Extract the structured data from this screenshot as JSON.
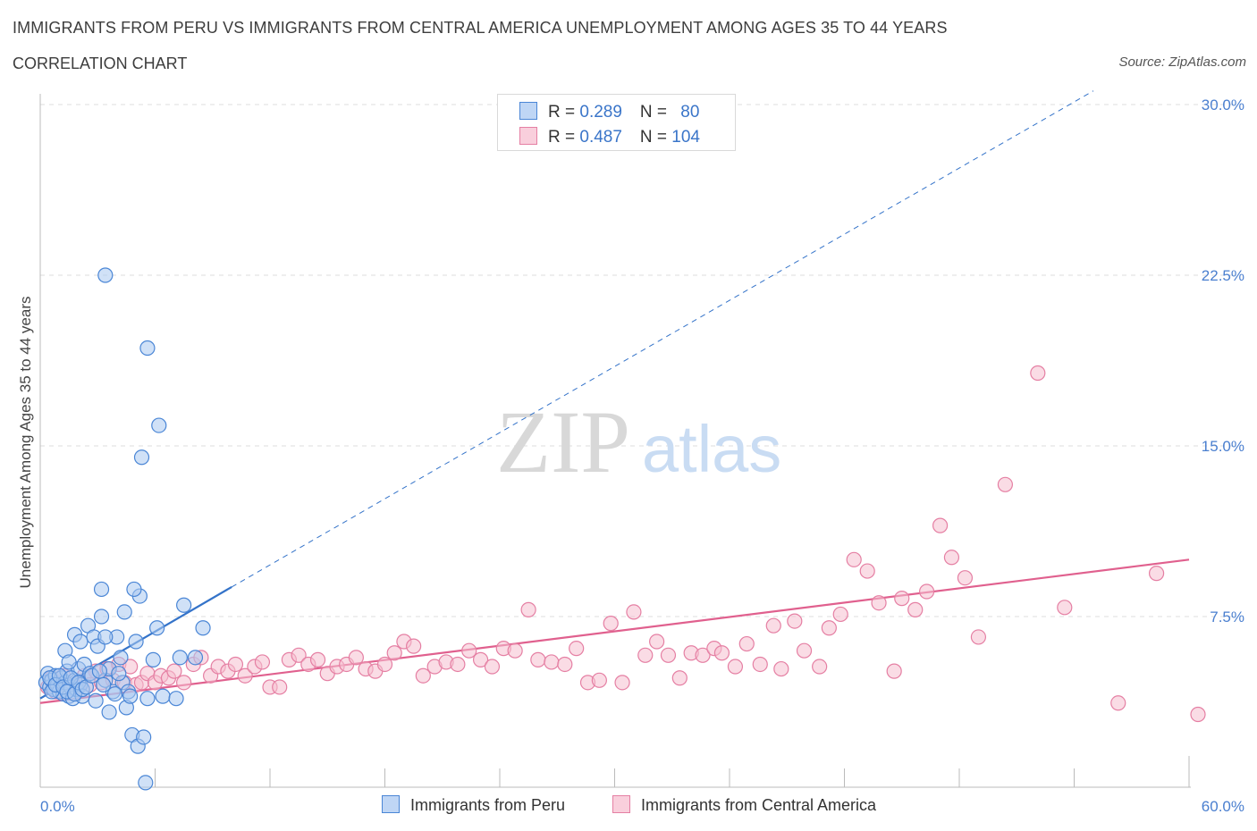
{
  "header": {
    "title": "IMMIGRANTS FROM PERU VS IMMIGRANTS FROM CENTRAL AMERICA UNEMPLOYMENT AMONG AGES 35 TO 44 YEARS",
    "subtitle": "CORRELATION CHART",
    "source": "Source: ZipAtlas.com"
  },
  "watermark": {
    "zip": "ZIP",
    "atlas": "atlas"
  },
  "legend": {
    "peru": {
      "r_label": "R = ",
      "r_value": "0.289",
      "n_label": "N = ",
      "n_value": "80"
    },
    "central": {
      "r_label": "R = ",
      "r_value": "0.487",
      "n_label": "N = ",
      "n_value": "104"
    }
  },
  "colors": {
    "peru_fill": "#a9c9f1",
    "peru_stroke": "#4a86d6",
    "peru_line": "#3473c9",
    "central_fill": "#f6bfd0",
    "central_stroke": "#e57fa3",
    "central_line": "#e0608e",
    "tick_text": "#4a7fcf",
    "grid": "#dddddd"
  },
  "chart_data": {
    "type": "scatter",
    "title": "IMMIGRANTS FROM PERU VS IMMIGRANTS FROM CENTRAL AMERICA UNEMPLOYMENT AMONG AGES 35 TO 44 YEARS",
    "subtitle": "CORRELATION CHART",
    "xlabel": "",
    "ylabel": "Unemployment Among Ages 35 to 44 years",
    "xlim": [
      0,
      60
    ],
    "ylim": [
      0,
      30
    ],
    "x_ticks_labels": [
      "0.0%",
      "60.0%"
    ],
    "y_ticks": [
      7.5,
      15.0,
      22.5,
      30.0
    ],
    "y_ticks_labels": [
      "7.5%",
      "15.0%",
      "22.5%",
      "30.0%"
    ],
    "grid": "horizontal dashed",
    "legend_position": "bottom",
    "series": [
      {
        "name": "Immigrants from Peru",
        "R": 0.289,
        "N": 80,
        "trend": {
          "x": [
            0,
            10
          ],
          "y": [
            3.9,
            8.8
          ],
          "extended_to": [
            55,
            30.6
          ]
        },
        "points": [
          [
            0.3,
            4.6
          ],
          [
            0.4,
            5.0
          ],
          [
            0.5,
            4.4
          ],
          [
            0.6,
            4.7
          ],
          [
            0.7,
            4.3
          ],
          [
            0.8,
            4.9
          ],
          [
            0.9,
            4.5
          ],
          [
            1.0,
            4.2
          ],
          [
            1.1,
            4.8
          ],
          [
            1.2,
            4.1
          ],
          [
            1.3,
            4.6
          ],
          [
            1.4,
            5.1
          ],
          [
            1.5,
            4.0
          ],
          [
            1.6,
            4.4
          ],
          [
            1.7,
            3.9
          ],
          [
            1.8,
            4.7
          ],
          [
            1.9,
            4.3
          ],
          [
            2.0,
            5.2
          ],
          [
            2.1,
            4.5
          ],
          [
            2.2,
            4.0
          ],
          [
            0.5,
            4.8
          ],
          [
            0.6,
            4.2
          ],
          [
            0.8,
            4.5
          ],
          [
            1.0,
            4.9
          ],
          [
            1.2,
            4.4
          ],
          [
            1.4,
            4.2
          ],
          [
            1.6,
            4.8
          ],
          [
            1.8,
            4.1
          ],
          [
            2.0,
            4.6
          ],
          [
            2.2,
            4.3
          ],
          [
            1.3,
            6.0
          ],
          [
            1.5,
            5.5
          ],
          [
            1.8,
            6.7
          ],
          [
            2.1,
            6.4
          ],
          [
            2.3,
            5.4
          ],
          [
            2.5,
            7.1
          ],
          [
            2.6,
            5.0
          ],
          [
            2.8,
            6.6
          ],
          [
            3.0,
            6.2
          ],
          [
            3.2,
            7.5
          ],
          [
            3.4,
            4.7
          ],
          [
            3.6,
            5.2
          ],
          [
            3.8,
            4.2
          ],
          [
            4.0,
            6.6
          ],
          [
            4.2,
            5.7
          ],
          [
            4.3,
            4.6
          ],
          [
            4.5,
            3.5
          ],
          [
            4.6,
            4.2
          ],
          [
            2.4,
            4.4
          ],
          [
            2.7,
            4.9
          ],
          [
            2.9,
            3.8
          ],
          [
            3.1,
            5.1
          ],
          [
            3.3,
            4.5
          ],
          [
            3.6,
            3.3
          ],
          [
            3.9,
            4.1
          ],
          [
            4.1,
            5.0
          ],
          [
            4.4,
            7.7
          ],
          [
            4.7,
            4.0
          ],
          [
            5.0,
            6.4
          ],
          [
            5.2,
            8.4
          ],
          [
            3.2,
            8.7
          ],
          [
            3.4,
            6.6
          ],
          [
            4.9,
            8.7
          ],
          [
            5.6,
            3.9
          ],
          [
            5.9,
            5.6
          ],
          [
            6.1,
            7.0
          ],
          [
            4.8,
            2.3
          ],
          [
            5.1,
            1.8
          ],
          [
            5.4,
            2.2
          ],
          [
            5.5,
            0.2
          ],
          [
            5.3,
            14.5
          ],
          [
            5.6,
            19.3
          ],
          [
            6.2,
            15.9
          ],
          [
            3.4,
            22.5
          ],
          [
            6.4,
            4.0
          ],
          [
            7.1,
            3.9
          ],
          [
            7.3,
            5.7
          ],
          [
            7.5,
            8.0
          ],
          [
            8.1,
            5.7
          ],
          [
            8.5,
            7.0
          ]
        ]
      },
      {
        "name": "Immigrants from Central America",
        "R": 0.487,
        "N": 104,
        "trend": {
          "x": [
            0,
            60
          ],
          "y": [
            3.7,
            10.0
          ]
        },
        "points": [
          [
            0.4,
            4.4
          ],
          [
            0.6,
            4.8
          ],
          [
            0.8,
            4.2
          ],
          [
            1.0,
            4.6
          ],
          [
            1.2,
            4.9
          ],
          [
            1.5,
            4.3
          ],
          [
            1.8,
            4.7
          ],
          [
            2.0,
            4.4
          ],
          [
            2.3,
            4.9
          ],
          [
            2.6,
            4.5
          ],
          [
            2.9,
            5.1
          ],
          [
            3.2,
            4.6
          ],
          [
            3.5,
            5.2
          ],
          [
            3.8,
            4.7
          ],
          [
            4.1,
            5.4
          ],
          [
            4.4,
            4.6
          ],
          [
            4.7,
            5.3
          ],
          [
            5.0,
            4.5
          ],
          [
            5.3,
            4.6
          ],
          [
            5.6,
            5.0
          ],
          [
            6.0,
            4.6
          ],
          [
            6.3,
            4.9
          ],
          [
            6.7,
            4.8
          ],
          [
            7.0,
            5.1
          ],
          [
            7.5,
            4.6
          ],
          [
            8.0,
            5.4
          ],
          [
            8.4,
            5.7
          ],
          [
            8.9,
            4.9
          ],
          [
            9.3,
            5.3
          ],
          [
            9.8,
            5.1
          ],
          [
            10.2,
            5.4
          ],
          [
            10.7,
            4.9
          ],
          [
            11.2,
            5.3
          ],
          [
            11.6,
            5.5
          ],
          [
            12.0,
            4.4
          ],
          [
            12.5,
            4.4
          ],
          [
            13.0,
            5.6
          ],
          [
            13.5,
            5.8
          ],
          [
            14.0,
            5.4
          ],
          [
            14.5,
            5.6
          ],
          [
            15.0,
            5.0
          ],
          [
            15.5,
            5.3
          ],
          [
            16.0,
            5.4
          ],
          [
            16.5,
            5.7
          ],
          [
            17.0,
            5.2
          ],
          [
            17.5,
            5.1
          ],
          [
            18.0,
            5.4
          ],
          [
            18.5,
            5.9
          ],
          [
            19.0,
            6.4
          ],
          [
            19.5,
            6.2
          ],
          [
            20.0,
            4.9
          ],
          [
            20.6,
            5.3
          ],
          [
            21.2,
            5.5
          ],
          [
            21.8,
            5.4
          ],
          [
            22.4,
            6.0
          ],
          [
            23.0,
            5.6
          ],
          [
            23.6,
            5.3
          ],
          [
            24.2,
            6.1
          ],
          [
            24.8,
            6.0
          ],
          [
            25.5,
            7.8
          ],
          [
            26.0,
            5.6
          ],
          [
            26.7,
            5.5
          ],
          [
            27.4,
            5.4
          ],
          [
            28.0,
            6.1
          ],
          [
            28.6,
            4.6
          ],
          [
            29.2,
            4.7
          ],
          [
            29.8,
            7.2
          ],
          [
            30.4,
            4.6
          ],
          [
            31.0,
            7.7
          ],
          [
            31.6,
            5.8
          ],
          [
            32.2,
            6.4
          ],
          [
            32.8,
            5.8
          ],
          [
            33.4,
            4.8
          ],
          [
            34.0,
            5.9
          ],
          [
            34.6,
            5.8
          ],
          [
            35.2,
            6.1
          ],
          [
            35.6,
            5.9
          ],
          [
            36.3,
            5.3
          ],
          [
            36.9,
            6.3
          ],
          [
            37.6,
            5.4
          ],
          [
            38.3,
            7.1
          ],
          [
            38.7,
            5.2
          ],
          [
            39.4,
            7.3
          ],
          [
            39.9,
            6.0
          ],
          [
            40.7,
            5.3
          ],
          [
            41.2,
            7.0
          ],
          [
            41.8,
            7.6
          ],
          [
            42.5,
            10.0
          ],
          [
            43.2,
            9.5
          ],
          [
            43.8,
            8.1
          ],
          [
            44.6,
            5.1
          ],
          [
            45.0,
            8.3
          ],
          [
            45.7,
            7.8
          ],
          [
            46.3,
            8.6
          ],
          [
            47.0,
            11.5
          ],
          [
            47.6,
            10.1
          ],
          [
            48.3,
            9.2
          ],
          [
            49.0,
            6.6
          ],
          [
            50.4,
            13.3
          ],
          [
            52.1,
            18.2
          ],
          [
            53.5,
            7.9
          ],
          [
            56.3,
            3.7
          ],
          [
            58.3,
            9.4
          ],
          [
            61.0,
            3.2
          ]
        ]
      }
    ]
  },
  "bottom_legend": {
    "peru_label": "Immigrants from Peru",
    "central_label": "Immigrants from Central America"
  }
}
